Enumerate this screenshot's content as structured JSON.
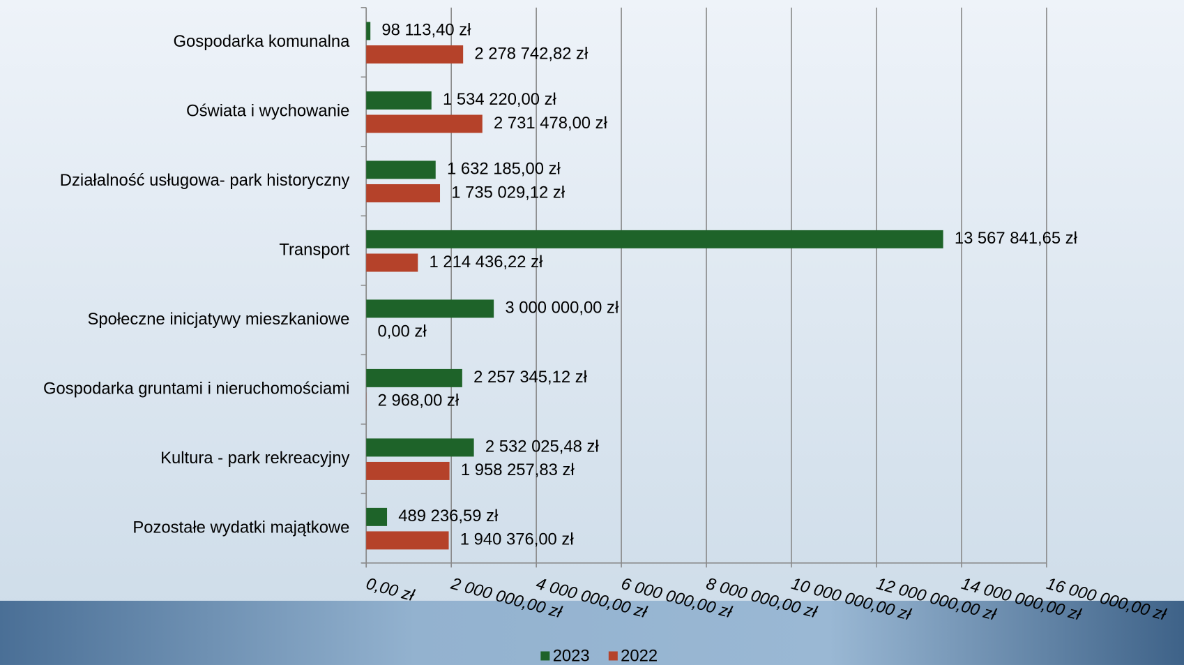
{
  "chart_data": {
    "type": "hbar",
    "categories": [
      "Gospodarka komunalna",
      "Oświata i wychowanie",
      "Działalność usługowa- park historyczny",
      "Transport",
      "Społeczne inicjatywy mieszkaniowe",
      "Gospodarka gruntami i nieruchomościami",
      "Kultura - park rekreacyjny",
      "Pozostałe wydatki majątkowe"
    ],
    "series": [
      {
        "name": "2023",
        "color": "#1e6329",
        "values": [
          98113.4,
          1534220.0,
          1632185.0,
          13567841.65,
          3000000.0,
          2257345.12,
          2532025.48,
          489236.59
        ],
        "value_labels": [
          "98 113,40 zł",
          "1 534 220,00 zł",
          "1 632 185,00 zł",
          "13 567 841,65 zł",
          "3 000 000,00 zł",
          "2 257 345,12 zł",
          "2 532 025,48 zł",
          "489 236,59 zł"
        ]
      },
      {
        "name": "2022",
        "color": "#b5422a",
        "values": [
          2278742.82,
          2731478.0,
          1735029.12,
          1214436.22,
          0,
          2968.0,
          1958257.83,
          1940376.0
        ],
        "value_labels": [
          "2 278 742,82 zł",
          "2 731 478,00 zł",
          "1 735 029,12 zł",
          "1 214 436,22 zł",
          "0,00 zł",
          "2 968,00 zł",
          "1 958 257,83 zł",
          "1 940 376,00 zł"
        ]
      }
    ],
    "xlim": [
      0,
      16000000
    ],
    "xticks": [
      {
        "value": 0,
        "label": "0,00 zł"
      },
      {
        "value": 2000000,
        "label": "2 000 000,00 zł"
      },
      {
        "value": 4000000,
        "label": "4 000 000,00 zł"
      },
      {
        "value": 6000000,
        "label": "6 000 000,00 zł"
      },
      {
        "value": 8000000,
        "label": "8 000 000,00 zł"
      },
      {
        "value": 10000000,
        "label": "10 000 000,00 zł"
      },
      {
        "value": 12000000,
        "label": "12 000 000,00 zł"
      },
      {
        "value": 14000000,
        "label": "14 000 000,00 zł"
      },
      {
        "value": 16000000,
        "label": "16 000 000,00 zł"
      }
    ],
    "grid": true,
    "legend": "bottom"
  }
}
